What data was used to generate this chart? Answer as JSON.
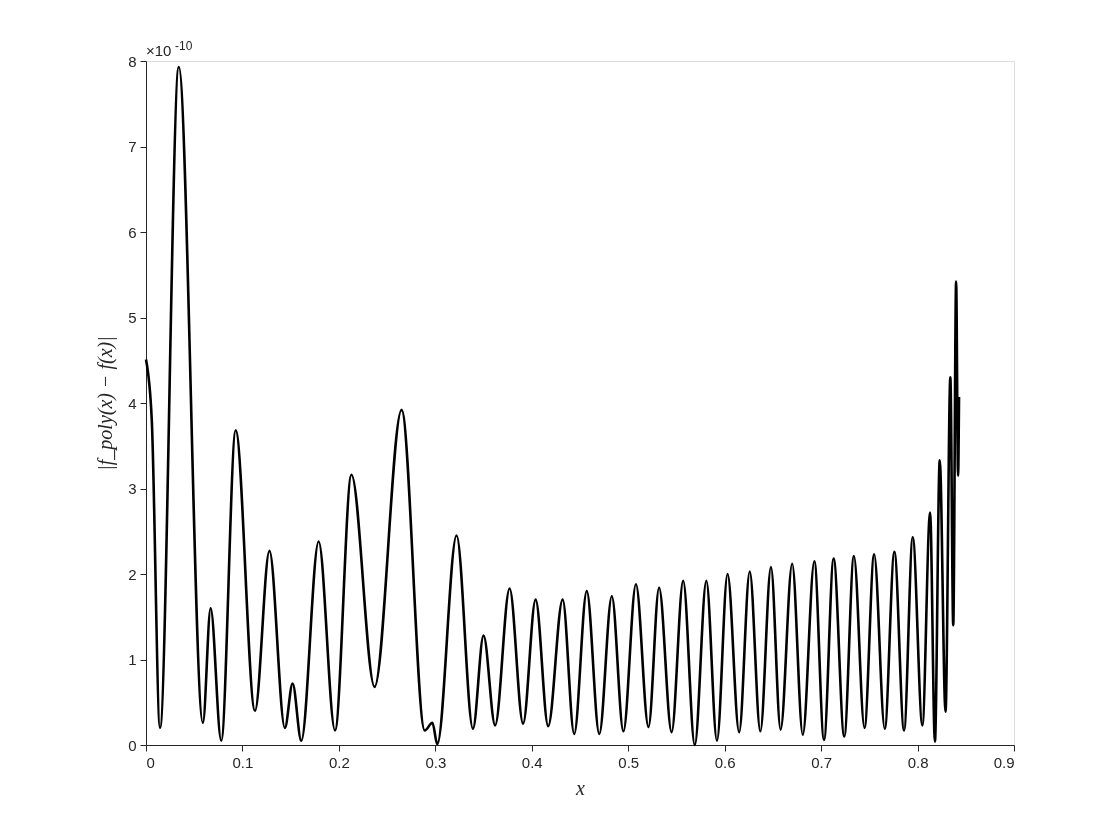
{
  "chart_data": {
    "type": "line",
    "xlabel": "x",
    "ylabel": "|f_poly(x) − f(x)|",
    "annotations": [
      "×10$^{-10}$"
    ],
    "xlim": [
      0,
      0.9
    ],
    "xticks": [
      0,
      0.1,
      0.2,
      0.3,
      0.4,
      0.5,
      0.6,
      0.7,
      0.8,
      0.9
    ],
    "ylim": [
      0,
      8
    ],
    "yticks": [
      0,
      1,
      2,
      3,
      4,
      5,
      6,
      7,
      8
    ],
    "grid": false,
    "legend": false,
    "marker": "none",
    "line_style": "solid",
    "series": [
      {
        "color": "#000000",
        "x": [
          0,
          0.006,
          0.0145,
          0.034,
          0.059,
          0.067,
          0.078,
          0.093,
          0.113,
          0.128,
          0.144,
          0.152,
          0.161,
          0.179,
          0.196,
          0.213,
          0.237,
          0.265,
          0.289,
          0.297,
          0.302,
          0.322,
          0.339,
          0.35,
          0.362,
          0.377,
          0.391,
          0.404,
          0.417,
          0.432,
          0.444,
          0.457,
          0.47,
          0.483,
          0.495,
          0.508,
          0.521,
          0.532,
          0.545,
          0.557,
          0.569,
          0.581,
          0.592,
          0.603,
          0.615,
          0.626,
          0.637,
          0.648,
          0.658,
          0.67,
          0.681,
          0.693,
          0.703,
          0.713,
          0.724,
          0.734,
          0.745,
          0.755,
          0.766,
          0.776,
          0.786,
          0.795,
          0.805,
          0.813,
          0.818,
          0.823,
          0.829,
          0.834,
          0.837,
          0.84,
          0.842,
          0.843
        ],
        "values": [
          4.51,
          3.8,
          0.2,
          7.93,
          0.26,
          1.6,
          0.05,
          3.68,
          0.4,
          2.27,
          0.2,
          0.72,
          0.05,
          2.38,
          0.17,
          3.16,
          0.68,
          3.92,
          0.17,
          0.26,
          0.01,
          2.45,
          0.19,
          1.28,
          0.23,
          1.83,
          0.25,
          1.7,
          0.22,
          1.7,
          0.13,
          1.8,
          0.13,
          1.74,
          0.16,
          1.88,
          0.21,
          1.84,
          0.15,
          1.92,
          0.0,
          1.92,
          0.05,
          2.0,
          0.15,
          2.03,
          0.16,
          2.08,
          0.18,
          2.12,
          0.12,
          2.15,
          0.06,
          2.18,
          0.1,
          2.21,
          0.2,
          2.23,
          0.19,
          2.26,
          0.17,
          2.43,
          0.23,
          2.72,
          0.04,
          3.33,
          0.39,
          4.3,
          1.4,
          5.42,
          3.15,
          4.07
        ]
      }
    ]
  }
}
